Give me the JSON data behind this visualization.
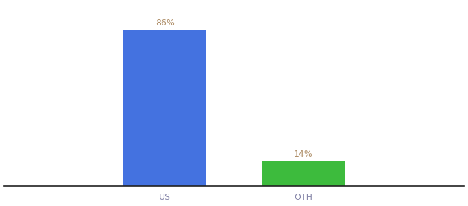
{
  "categories": [
    "US",
    "OTH"
  ],
  "values": [
    86,
    14
  ],
  "bar_colors": [
    "#4472e0",
    "#3dbb3d"
  ],
  "label_texts": [
    "86%",
    "14%"
  ],
  "label_color": "#b0906a",
  "background_color": "#ffffff",
  "bar_width": 0.18,
  "ylim": [
    0,
    100
  ],
  "label_fontsize": 9,
  "tick_fontsize": 9,
  "tick_color": "#8888aa",
  "spine_color": "#222222",
  "x_positions": [
    0.35,
    0.65
  ]
}
